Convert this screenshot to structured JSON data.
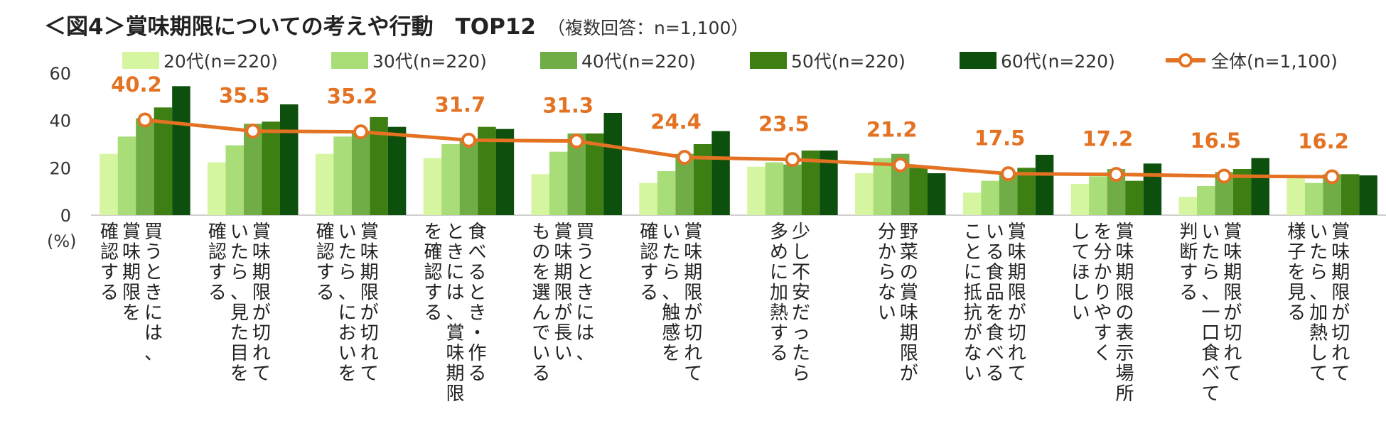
{
  "title": "＜図4＞賞味期限についての考えや行動　TOP12",
  "subtitle": "（複数回答：n=1,100）",
  "chart_data": {
    "type": "bar",
    "ylim": [
      0,
      60
    ],
    "yticks": [
      "0",
      "20",
      "40",
      "60"
    ],
    "y_unit": "(%)",
    "categories": [
      [
        "買うときには、",
        "賞味期限を",
        "確認する"
      ],
      [
        "賞味期限が切れて",
        "いたら、見た目を",
        "確認する"
      ],
      [
        "賞味期限が切れて",
        "いたら、においを",
        "確認する"
      ],
      [
        "食べるとき・作る",
        "ときには、賞味期限",
        "を確認する"
      ],
      [
        "買うときには、",
        "賞味期限が長い",
        "ものを選んでいる"
      ],
      [
        "賞味期限が切れて",
        "いたら、触感を",
        "確認する"
      ],
      [
        "少し不安だったら",
        "多めに加熱する"
      ],
      [
        "野菜の賞味期限が",
        "分からない"
      ],
      [
        "賞味期限が切れて",
        "いる食品を食べる",
        "ことに抵抗がない"
      ],
      [
        "賞味期限の表示場所",
        "を分かりやすく",
        "してほしい"
      ],
      [
        "賞味期限が切れて",
        "いたら、一口食べて",
        "判断する"
      ],
      [
        "賞味期限が切れて",
        "いたら、加熱して",
        "様子を見る"
      ]
    ],
    "series": [
      {
        "name": "20代(n=220)",
        "color": "#D6F5A0",
        "values": [
          25.9,
          22.3,
          25.9,
          24.1,
          17.3,
          13.6,
          20.5,
          17.7,
          9.5,
          13.2,
          7.7,
          15.5
        ]
      },
      {
        "name": "30代(n=220)",
        "color": "#A9DD78",
        "values": [
          33.2,
          29.5,
          33.2,
          30.0,
          26.8,
          18.6,
          22.3,
          24.1,
          14.5,
          16.4,
          12.3,
          13.6
        ]
      },
      {
        "name": "40代(n=220)",
        "color": "#70AD47",
        "values": [
          40.9,
          38.6,
          34.5,
          31.4,
          34.5,
          25.9,
          21.4,
          25.9,
          18.2,
          19.5,
          18.2,
          17.3
        ]
      },
      {
        "name": "50代(n=220)",
        "color": "#3E7F14",
        "values": [
          45.5,
          39.5,
          41.4,
          37.3,
          34.5,
          30.0,
          27.3,
          20.0,
          20.0,
          14.5,
          19.5,
          17.3
        ]
      },
      {
        "name": "60代(n=220)",
        "color": "#0D4F0D",
        "values": [
          54.5,
          46.8,
          37.3,
          36.4,
          43.2,
          35.5,
          27.3,
          17.7,
          25.5,
          21.8,
          24.1,
          16.8
        ]
      }
    ],
    "overall": {
      "name": "全体(n=1,100)",
      "color": "#E37222",
      "values": [
        40.2,
        35.5,
        35.2,
        31.7,
        31.3,
        24.4,
        23.5,
        21.2,
        17.5,
        17.2,
        16.5,
        16.2
      ],
      "labels": [
        "40.2",
        "35.5",
        "35.2",
        "31.7",
        "31.3",
        "24.4",
        "23.5",
        "21.2",
        "17.5",
        "17.2",
        "16.5",
        "16.2"
      ]
    },
    "legend_position": "top"
  }
}
